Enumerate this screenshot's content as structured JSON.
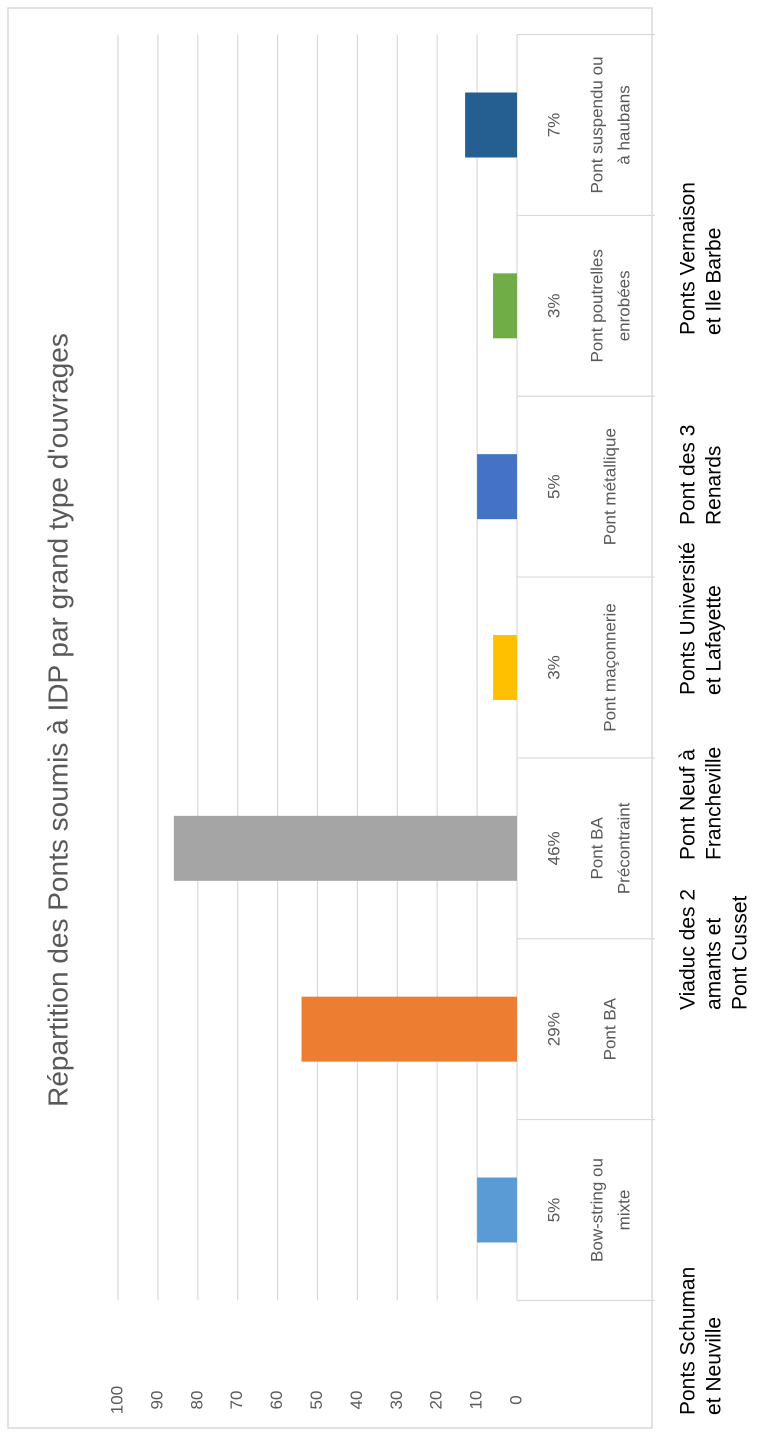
{
  "chart_data": {
    "type": "bar",
    "title": "Répartition des Ponts soumis à IDP par grand type d'ouvrages",
    "categories": [
      [
        "Bow-string ou",
        "mixte"
      ],
      [
        "Pont BA"
      ],
      [
        "Pont BA",
        "Précontraint"
      ],
      [
        "Pont maçonnerie"
      ],
      [
        "Pont métallique"
      ],
      [
        "Pont poutrelles",
        "enrobées"
      ],
      [
        "Pont suspendu ou",
        "à haubans"
      ]
    ],
    "values": [
      10,
      54,
      86,
      6,
      10,
      6,
      13
    ],
    "data_labels": [
      "5%",
      "29%",
      "46%",
      "3%",
      "5%",
      "3%",
      "7%"
    ],
    "colors": [
      "#5b9bd5",
      "#ed7d31",
      "#a5a5a5",
      "#ffc000",
      "#4472c4",
      "#70ad47",
      "#255e91"
    ],
    "ylim": [
      0,
      100
    ],
    "yticks": [
      0,
      10,
      20,
      30,
      40,
      50,
      60,
      70,
      80,
      90,
      100
    ],
    "grid": true,
    "annotations": [
      [
        "Ponts Schuman",
        "et Neuville"
      ],
      [
        "Viaduc des 2",
        "amants et",
        "Pont Cusset"
      ],
      [
        "Pont Neuf à",
        "Francheville"
      ],
      [
        "Ponts Université",
        "et Lafayette"
      ],
      [
        "Pont des 3",
        "Renards"
      ],
      [
        "Ponts Vernaison",
        "et Ile Barbe"
      ]
    ]
  }
}
